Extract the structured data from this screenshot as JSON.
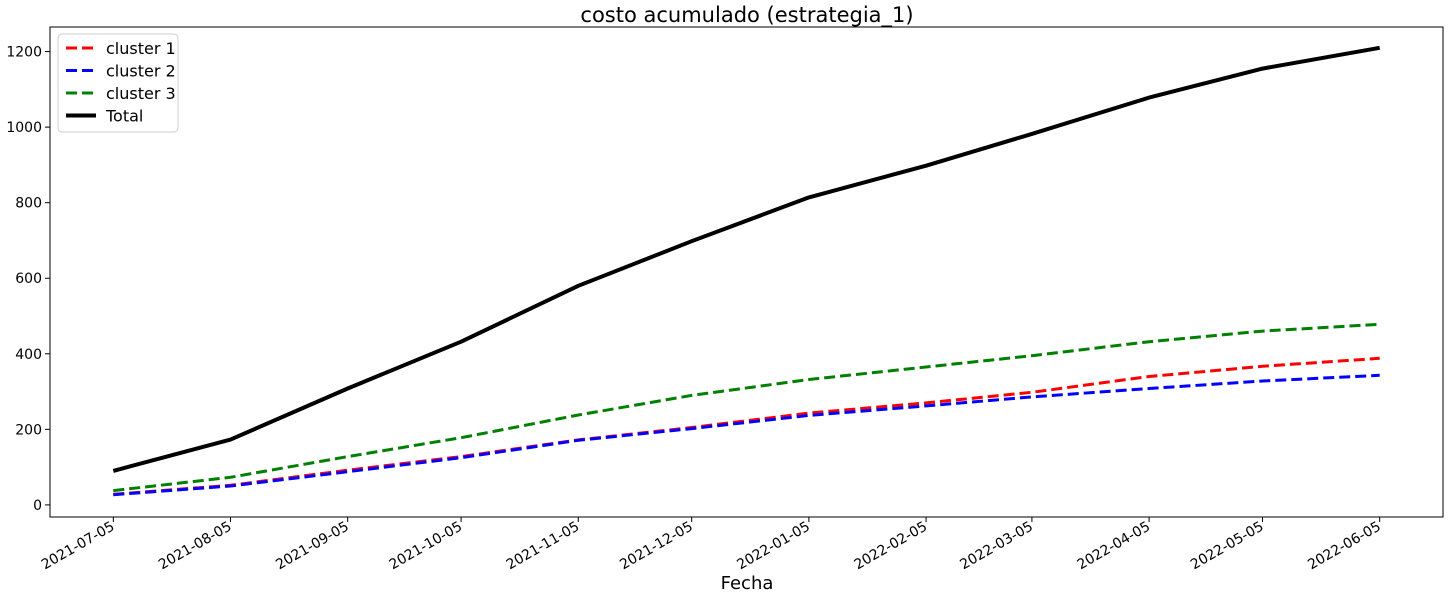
{
  "chart_data": {
    "type": "line",
    "title": "costo acumulado (estrategia_1)",
    "xlabel": "Fecha",
    "ylabel": "",
    "x": [
      "2021-07-05",
      "2021-08-05",
      "2021-09-05",
      "2021-10-05",
      "2021-11-05",
      "2021-12-05",
      "2022-01-05",
      "2022-02-05",
      "2022-03-05",
      "2022-04-05",
      "2022-05-05",
      "2022-06-05"
    ],
    "xticks": [
      "2021-07-05",
      "2021-08-05",
      "2021-09-05",
      "2021-10-05",
      "2021-11-05",
      "2021-12-05",
      "2022-01-05",
      "2022-02-05",
      "2022-03-05",
      "2022-04-05",
      "2022-05-05",
      "2022-06-05"
    ],
    "ylim": [
      -32,
      1265
    ],
    "yticks": [
      0,
      200,
      400,
      600,
      800,
      1000,
      1200
    ],
    "grid": false,
    "legend_position": "top-left",
    "series": [
      {
        "name": "cluster 1",
        "color": "#ff0000",
        "style": "dashed",
        "values": [
          28,
          52,
          92,
          128,
          172,
          205,
          243,
          270,
          298,
          340,
          367,
          388
        ]
      },
      {
        "name": "cluster 2",
        "color": "#0000ff",
        "style": "dashed",
        "values": [
          27,
          50,
          88,
          125,
          171,
          202,
          237,
          262,
          286,
          308,
          328,
          343
        ]
      },
      {
        "name": "cluster 3",
        "color": "#008000",
        "style": "dashed",
        "values": [
          38,
          73,
          128,
          178,
          238,
          290,
          332,
          365,
          395,
          432,
          460,
          478
        ]
      },
      {
        "name": "Total",
        "color": "#000000",
        "style": "solid",
        "values": [
          90,
          173,
          308,
          432,
          580,
          698,
          814,
          898,
          982,
          1078,
          1155,
          1210
        ]
      }
    ]
  }
}
